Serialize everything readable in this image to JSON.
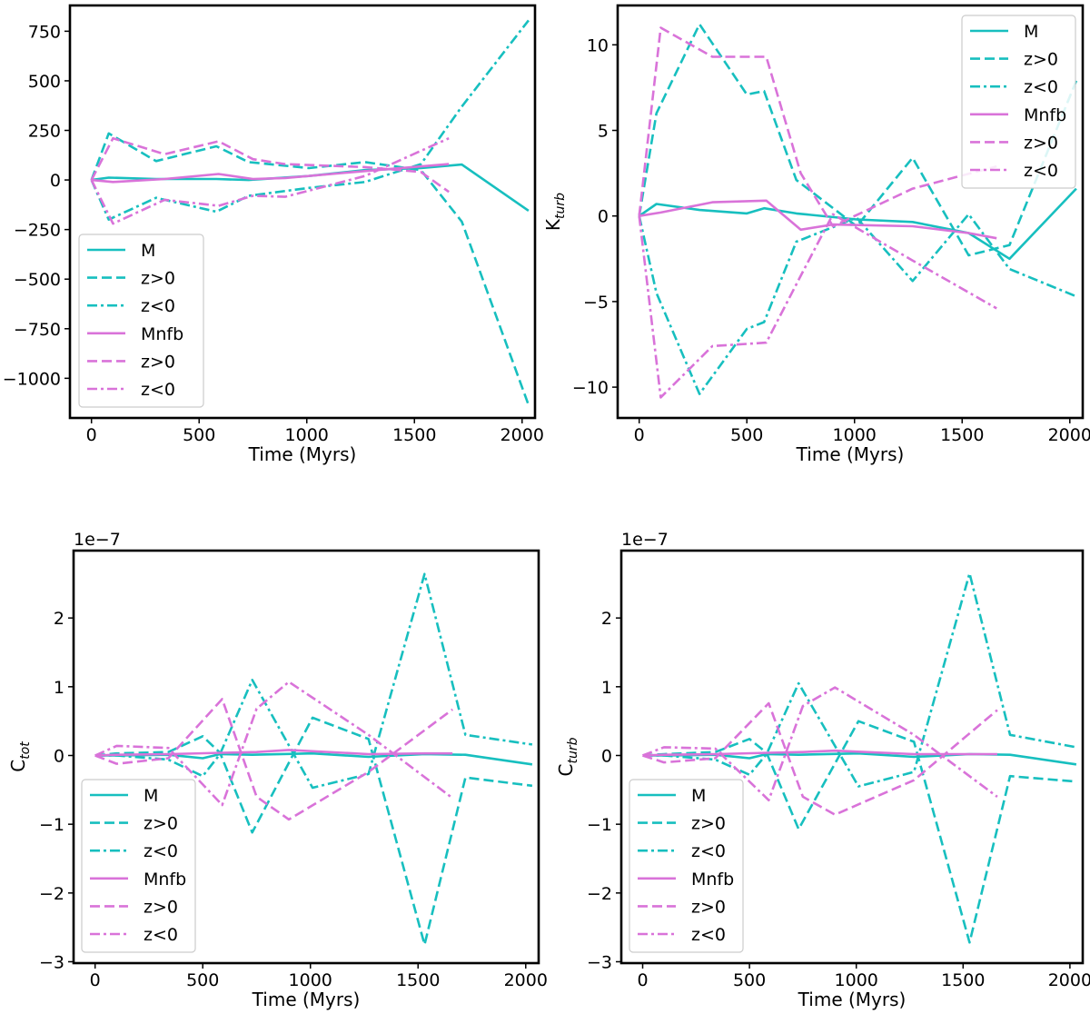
{
  "colors": {
    "M": "#17bfbf",
    "Mnfb": "#d973d9"
  },
  "chart_data": [
    {
      "type": "line",
      "xlabel": "Time (Myrs)",
      "ylabel": "",
      "xlim": [
        -100,
        2060
      ],
      "ylim": [
        -1200,
        880
      ],
      "xticks": [
        0,
        500,
        1000,
        1500,
        2000
      ],
      "yticks": [
        750,
        500,
        250,
        0,
        -250,
        -500,
        -750,
        -1000
      ],
      "ytick_labels": [
        "750",
        "500",
        "250",
        "0",
        "−250",
        "−500",
        "−750",
        "−1000"
      ],
      "legend": "lower-left",
      "grid": false,
      "series": [
        {
          "name": "M",
          "style": "solid",
          "color": "M",
          "x": [
            0,
            80,
            300,
            580,
            730,
            1010,
            1270,
            1530,
            1720,
            2030
          ],
          "y": [
            0,
            12,
            5,
            5,
            0,
            20,
            50,
            60,
            78,
            -155
          ]
        },
        {
          "name": "z>0",
          "style": "dashed",
          "color": "M",
          "x": [
            0,
            80,
            300,
            580,
            730,
            1010,
            1270,
            1530,
            1720,
            2030
          ],
          "y": [
            0,
            235,
            95,
            170,
            90,
            60,
            90,
            50,
            -210,
            -1135
          ]
        },
        {
          "name": "z<0",
          "style": "dashdot",
          "color": "M",
          "x": [
            0,
            80,
            300,
            580,
            730,
            1010,
            1270,
            1530,
            1720,
            2030
          ],
          "y": [
            0,
            -200,
            -90,
            -160,
            -80,
            -40,
            -10,
            80,
            370,
            805
          ]
        },
        {
          "name": "Mnfb",
          "style": "solid",
          "color": "Mnfb",
          "x": [
            0,
            100,
            340,
            590,
            750,
            900,
            1270,
            1660
          ],
          "y": [
            0,
            -10,
            5,
            30,
            5,
            10,
            45,
            80
          ]
        },
        {
          "name": "z>0",
          "style": "dashed",
          "color": "Mnfb",
          "x": [
            0,
            100,
            340,
            590,
            750,
            900,
            1270,
            1530,
            1660
          ],
          "y": [
            0,
            210,
            130,
            195,
            105,
            80,
            65,
            40,
            -60
          ]
        },
        {
          "name": "z<0",
          "style": "dashdot",
          "color": "Mnfb",
          "x": [
            0,
            100,
            340,
            590,
            750,
            900,
            1270,
            1660
          ],
          "y": [
            0,
            -220,
            -100,
            -130,
            -80,
            -85,
            20,
            210
          ]
        }
      ]
    },
    {
      "type": "line",
      "xlabel": "Time (Myrs)",
      "ylabel": "K",
      "ylabel_sub": "turb",
      "xlim": [
        -100,
        2060
      ],
      "ylim": [
        -11.8,
        12.3
      ],
      "xticks": [
        0,
        500,
        1000,
        1500,
        2000
      ],
      "yticks": [
        10,
        5,
        0,
        -5,
        -10
      ],
      "ytick_labels": [
        "10",
        "5",
        "0",
        "−5",
        "−10"
      ],
      "legend": "upper-right",
      "grid": false,
      "series": [
        {
          "name": "M",
          "style": "solid",
          "color": "M",
          "x": [
            0,
            80,
            280,
            500,
            580,
            730,
            1010,
            1270,
            1530,
            1720,
            2030
          ],
          "y": [
            0,
            0.7,
            0.35,
            0.15,
            0.45,
            0.15,
            -0.2,
            -0.35,
            -1.0,
            -2.5,
            1.6
          ]
        },
        {
          "name": "z>0",
          "style": "dashed",
          "color": "M",
          "x": [
            0,
            80,
            280,
            500,
            580,
            730,
            1010,
            1270,
            1530,
            1720,
            2030
          ],
          "y": [
            0,
            6,
            11.2,
            7.1,
            7.3,
            2.1,
            -0.6,
            3.4,
            -2.3,
            -1.7,
            7.9
          ]
        },
        {
          "name": "z<0",
          "style": "dashdot",
          "color": "M",
          "x": [
            0,
            80,
            280,
            500,
            580,
            730,
            1010,
            1270,
            1530,
            1720,
            2030
          ],
          "y": [
            0,
            -4.5,
            -10.4,
            -6.6,
            -6.2,
            -1.5,
            -0.1,
            -3.8,
            0.1,
            -3.1,
            -4.7
          ]
        },
        {
          "name": "Mnfb",
          "style": "solid",
          "color": "Mnfb",
          "x": [
            0,
            100,
            340,
            590,
            750,
            900,
            1270,
            1530,
            1660
          ],
          "y": [
            0,
            0.2,
            0.8,
            0.9,
            -0.8,
            -0.5,
            -0.6,
            -1.0,
            -1.3
          ]
        },
        {
          "name": "z>0",
          "style": "dashed",
          "color": "Mnfb",
          "x": [
            0,
            100,
            340,
            590,
            750,
            900,
            1270,
            1660
          ],
          "y": [
            0,
            11,
            9.3,
            9.3,
            2.5,
            -0.6,
            1.6,
            2.9
          ]
        },
        {
          "name": "z<0",
          "style": "dashdot",
          "color": "Mnfb",
          "x": [
            0,
            100,
            340,
            590,
            750,
            900,
            1270,
            1660
          ],
          "y": [
            0,
            -10.6,
            -7.6,
            -7.4,
            -3.5,
            0.1,
            -2.6,
            -5.4
          ]
        }
      ]
    },
    {
      "type": "line",
      "xlabel": "Time (Myrs)",
      "ylabel": "C",
      "ylabel_sub": "tot",
      "multiplier": "1e−7",
      "xlim": [
        -100,
        2060
      ],
      "ylim": [
        -3.02,
        2.98
      ],
      "xticks": [
        0,
        500,
        1000,
        1500,
        2000
      ],
      "yticks": [
        2,
        1,
        0,
        -1,
        -2,
        -3
      ],
      "ytick_labels": [
        "2",
        "1",
        "0",
        "−1",
        "−2",
        "−3"
      ],
      "legend": "lower-left",
      "grid": false,
      "series": [
        {
          "name": "M",
          "style": "solid",
          "color": "M",
          "x": [
            0,
            100,
            340,
            500,
            580,
            730,
            1010,
            1270,
            1530,
            1720,
            2030
          ],
          "y": [
            0,
            0,
            0.01,
            -0.04,
            0.02,
            0.01,
            0.03,
            -0.02,
            0.02,
            0.01,
            -0.13
          ]
        },
        {
          "name": "z>0",
          "style": "dashed",
          "color": "M",
          "x": [
            0,
            100,
            340,
            500,
            580,
            730,
            1010,
            1270,
            1530,
            1720,
            2030
          ],
          "y": [
            0,
            0.03,
            0.05,
            0.28,
            0.04,
            -1.12,
            0.55,
            0.24,
            -2.75,
            -0.32,
            -0.44
          ]
        },
        {
          "name": "z<0",
          "style": "dashdot",
          "color": "M",
          "x": [
            0,
            100,
            340,
            500,
            580,
            730,
            1010,
            1270,
            1530,
            1720,
            2030
          ],
          "y": [
            0,
            0,
            -0.06,
            -0.3,
            0.02,
            1.1,
            -0.47,
            -0.27,
            2.64,
            0.3,
            0.16
          ]
        },
        {
          "name": "Mnfb",
          "style": "solid",
          "color": "Mnfb",
          "x": [
            0,
            100,
            340,
            590,
            750,
            900,
            1270,
            1530,
            1660
          ],
          "y": [
            0,
            0.01,
            0.02,
            0.04,
            0.05,
            0.08,
            0.02,
            0.03,
            0.03
          ]
        },
        {
          "name": "z>0",
          "style": "dashed",
          "color": "Mnfb",
          "x": [
            0,
            100,
            340,
            590,
            750,
            900,
            1270,
            1660
          ],
          "y": [
            0,
            -0.12,
            -0.04,
            0.82,
            -0.6,
            -0.93,
            -0.24,
            0.67
          ]
        },
        {
          "name": "z<0",
          "style": "dashdot",
          "color": "Mnfb",
          "x": [
            0,
            100,
            340,
            590,
            750,
            900,
            1270,
            1660
          ],
          "y": [
            0,
            0.14,
            0.11,
            -0.72,
            0.68,
            1.07,
            0.3,
            -0.62
          ]
        }
      ]
    },
    {
      "type": "line",
      "xlabel": "Time (Myrs)",
      "ylabel": "C",
      "ylabel_sub": "turb",
      "multiplier": "1e−7",
      "xlim": [
        -100,
        2060
      ],
      "ylim": [
        -3.02,
        2.98
      ],
      "xticks": [
        0,
        500,
        1000,
        1500,
        2000
      ],
      "yticks": [
        2,
        1,
        0,
        -1,
        -2,
        -3
      ],
      "ytick_labels": [
        "2",
        "1",
        "0",
        "−1",
        "−2",
        "−3"
      ],
      "legend": "lower-left",
      "grid": false,
      "series": [
        {
          "name": "M",
          "style": "solid",
          "color": "M",
          "x": [
            0,
            100,
            340,
            500,
            580,
            730,
            1010,
            1270,
            1530,
            1720,
            2030
          ],
          "y": [
            0,
            0,
            0.01,
            -0.04,
            0.02,
            0.01,
            0.03,
            -0.02,
            0.02,
            0.01,
            -0.13
          ]
        },
        {
          "name": "z>0",
          "style": "dashed",
          "color": "M",
          "x": [
            0,
            100,
            340,
            500,
            580,
            730,
            1010,
            1270,
            1530,
            1720,
            2030
          ],
          "y": [
            0,
            0.02,
            0.05,
            0.24,
            0.04,
            -1.07,
            0.5,
            0.2,
            -2.72,
            -0.3,
            -0.38
          ]
        },
        {
          "name": "z<0",
          "style": "dashdot",
          "color": "M",
          "x": [
            0,
            100,
            340,
            500,
            580,
            730,
            1010,
            1270,
            1530,
            1720,
            2030
          ],
          "y": [
            0,
            0,
            -0.06,
            -0.28,
            0.02,
            1.05,
            -0.45,
            -0.24,
            2.65,
            0.3,
            0.12
          ]
        },
        {
          "name": "Mnfb",
          "style": "solid",
          "color": "Mnfb",
          "x": [
            0,
            100,
            340,
            590,
            750,
            900,
            1270,
            1530,
            1660
          ],
          "y": [
            0,
            0.01,
            0.02,
            0.04,
            0.05,
            0.07,
            0.02,
            0.02,
            0.02
          ]
        },
        {
          "name": "z>0",
          "style": "dashed",
          "color": "Mnfb",
          "x": [
            0,
            100,
            340,
            590,
            750,
            900,
            1270,
            1660
          ],
          "y": [
            0,
            -0.1,
            -0.04,
            0.76,
            -0.6,
            -0.86,
            -0.36,
            0.66
          ]
        },
        {
          "name": "z<0",
          "style": "dashdot",
          "color": "Mnfb",
          "x": [
            0,
            100,
            340,
            590,
            750,
            900,
            1270,
            1660
          ],
          "y": [
            0,
            0.12,
            0.1,
            -0.65,
            0.72,
            0.99,
            0.3,
            -0.6
          ]
        }
      ]
    }
  ]
}
